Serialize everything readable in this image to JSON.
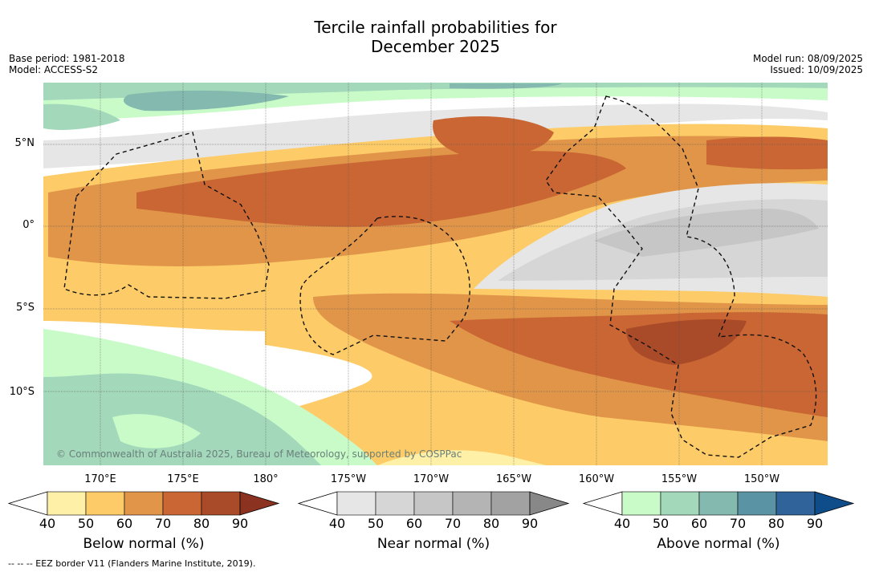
{
  "title_line1": "Tercile rainfall probabilities for",
  "title_line2": "December 2025",
  "base_period": "Base period: 1981-2018",
  "model": "Model: ACCESS-S2",
  "model_run": "Model run: 08/09/2025",
  "issued": "Issued: 10/09/2025",
  "copyright": "© Commonwealth of Australia 2025, Bureau of Meteorology, supported by COSPPac",
  "lat_labels": [
    "5°N",
    "0°",
    "5°S",
    "10°S"
  ],
  "lon_labels": [
    "170°E",
    "175°E",
    "180°",
    "175°W",
    "170°W",
    "165°W",
    "160°W",
    "155°W",
    "150°W"
  ],
  "colorbars": [
    {
      "label": "Below normal (%)",
      "ticks": [
        "40",
        "50",
        "60",
        "70",
        "80",
        "90"
      ],
      "colors": [
        "#ffffff",
        "#fff0a8",
        "#fdcb67",
        "#e09549",
        "#c96633",
        "#a94a28",
        "#8b3320"
      ]
    },
    {
      "label": "Near normal (%)",
      "ticks": [
        "40",
        "50",
        "60",
        "70",
        "80",
        "90"
      ],
      "colors": [
        "#ffffff",
        "#e6e6e6",
        "#d6d6d6",
        "#c6c6c6",
        "#b4b4b4",
        "#a2a2a2",
        "#888888"
      ]
    },
    {
      "label": "Above normal (%)",
      "ticks": [
        "40",
        "50",
        "60",
        "70",
        "80",
        "90"
      ],
      "colors": [
        "#ffffff",
        "#c9fbc9",
        "#a3d8bb",
        "#83b9ae",
        "#5a94a4",
        "#2f6399",
        "#0f4c8a"
      ]
    }
  ],
  "footnote": "--  --  -- EEZ border V11 (Flanders Marine Institute, 2019)."
}
